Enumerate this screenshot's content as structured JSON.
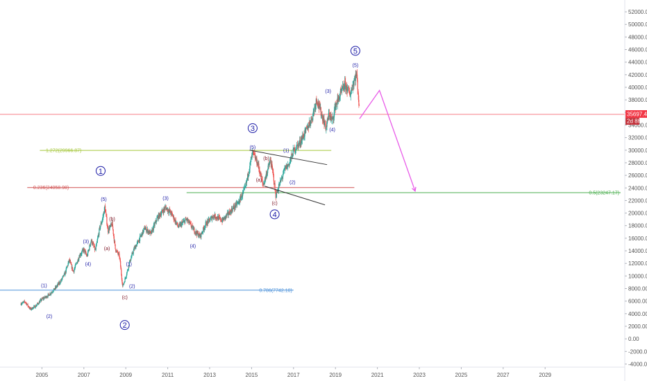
{
  "chart_data": {
    "type": "candlestick",
    "y_ticks": [
      -4000,
      -2000,
      0,
      2000,
      4000,
      6000,
      8000,
      10000,
      12000,
      14000,
      16000,
      18000,
      20000,
      22000,
      24000,
      26000,
      28000,
      30000,
      32000,
      34000,
      36000,
      38000,
      40000,
      42000,
      44000,
      46000,
      48000,
      50000,
      52000
    ],
    "x_ticks": [
      2005,
      2007,
      2009,
      2011,
      2013,
      2015,
      2017,
      2019,
      2021,
      2023,
      2025,
      2027,
      2029
    ],
    "y_tick_decimals": 2,
    "ylim": [
      -4500,
      53000
    ],
    "xlim": [
      2003.0,
      2032.8
    ],
    "last_price": {
      "label": "35697.40",
      "value": 35697.4,
      "countdown": "2d 8h",
      "color": "#f23645"
    },
    "price_series": [
      [
        2004.0,
        5600
      ],
      [
        2004.2,
        5900
      ],
      [
        2004.45,
        4700
      ],
      [
        2004.7,
        5200
      ],
      [
        2005.0,
        6300
      ],
      [
        2005.3,
        6900
      ],
      [
        2005.6,
        7900
      ],
      [
        2005.9,
        9200
      ],
      [
        2006.1,
        10400
      ],
      [
        2006.3,
        12500
      ],
      [
        2006.5,
        10700
      ],
      [
        2006.8,
        13300
      ],
      [
        2007.0,
        14200
      ],
      [
        2007.15,
        13100
      ],
      [
        2007.35,
        15700
      ],
      [
        2007.55,
        14000
      ],
      [
        2007.75,
        17500
      ],
      [
        2007.9,
        19200
      ],
      [
        2008.0,
        21000
      ],
      [
        2008.15,
        17200
      ],
      [
        2008.35,
        18300
      ],
      [
        2008.5,
        14300
      ],
      [
        2008.7,
        13100
      ],
      [
        2008.85,
        8300
      ],
      [
        2009.0,
        9900
      ],
      [
        2009.2,
        12400
      ],
      [
        2009.4,
        14300
      ],
      [
        2009.6,
        15500
      ],
      [
        2009.9,
        17600
      ],
      [
        2010.2,
        16700
      ],
      [
        2010.5,
        19200
      ],
      [
        2010.9,
        20900
      ],
      [
        2011.2,
        19800
      ],
      [
        2011.5,
        17800
      ],
      [
        2011.9,
        19000
      ],
      [
        2012.3,
        17100
      ],
      [
        2012.55,
        16300
      ],
      [
        2012.8,
        18200
      ],
      [
        2013.2,
        19600
      ],
      [
        2013.6,
        18800
      ],
      [
        2014.0,
        20300
      ],
      [
        2014.4,
        21800
      ],
      [
        2014.7,
        24000
      ],
      [
        2014.9,
        27300
      ],
      [
        2015.05,
        29600
      ],
      [
        2015.3,
        27800
      ],
      [
        2015.55,
        24400
      ],
      [
        2015.75,
        26700
      ],
      [
        2015.9,
        28400
      ],
      [
        2016.05,
        25700
      ],
      [
        2016.15,
        22700
      ],
      [
        2016.4,
        25200
      ],
      [
        2016.6,
        27100
      ],
      [
        2016.8,
        27900
      ],
      [
        2017.0,
        29900
      ],
      [
        2017.3,
        31200
      ],
      [
        2017.6,
        33100
      ],
      [
        2017.9,
        35300
      ],
      [
        2018.1,
        38200
      ],
      [
        2018.3,
        36100
      ],
      [
        2018.55,
        33600
      ],
      [
        2018.7,
        35800
      ],
      [
        2018.85,
        34600
      ],
      [
        2019.0,
        37100
      ],
      [
        2019.2,
        38600
      ],
      [
        2019.45,
        40400
      ],
      [
        2019.7,
        38900
      ],
      [
        2019.9,
        41300
      ],
      [
        2020.0,
        42100
      ],
      [
        2020.05,
        40600
      ],
      [
        2020.15,
        35700
      ]
    ],
    "projection": [
      [
        2020.15,
        35000
      ],
      [
        2021.1,
        39500
      ],
      [
        2022.8,
        23500
      ]
    ],
    "fib_levels": [
      {
        "label": "1.272(29966.87)",
        "value": 29966.87,
        "x0": 2004.9,
        "x1": 2018.8,
        "color": "#a4c639",
        "label_side": "left"
      },
      {
        "label": "0.236(24058.98)",
        "value": 24058.98,
        "x0": 2004.3,
        "x1": 2019.9,
        "color": "#d05050",
        "label_side": "left"
      },
      {
        "label": "0.5(23247.17)",
        "value": 23247.17,
        "x0": 2011.9,
        "x1": 2032.6,
        "color": "#4caf50",
        "label_side": "right"
      },
      {
        "label": "0.786(7742.10)",
        "value": 7742.1,
        "x0": 2002.4,
        "x1": 2017.0,
        "color": "#4a90d9",
        "label_side": "right"
      }
    ],
    "channel_lines": [
      {
        "x0": 2014.9,
        "y0": 30000,
        "x1": 2018.6,
        "y1": 27700
      },
      {
        "x0": 2015.6,
        "y0": 24300,
        "x1": 2018.5,
        "y1": 21300
      }
    ],
    "wave_labels": [
      {
        "t": "(1)",
        "x": 2005.1,
        "y": 8500,
        "c": "#1a1aa6"
      },
      {
        "t": "(2)",
        "x": 2005.35,
        "y": 3600,
        "c": "#1a1aa6"
      },
      {
        "t": "(3)",
        "x": 2007.1,
        "y": 15500,
        "c": "#1a1aa6"
      },
      {
        "t": "(4)",
        "x": 2007.2,
        "y": 11900,
        "c": "#1a1aa6"
      },
      {
        "t": "(5)",
        "x": 2007.95,
        "y": 22200,
        "c": "#1a1aa6"
      },
      {
        "t": "(b)",
        "x": 2008.35,
        "y": 19100,
        "c": "#7a1020"
      },
      {
        "t": "(a)",
        "x": 2008.1,
        "y": 14400,
        "c": "#7a1020"
      },
      {
        "t": "(1)",
        "x": 2009.15,
        "y": 11900,
        "c": "#1a1aa6"
      },
      {
        "t": "(2)",
        "x": 2009.3,
        "y": 8400,
        "c": "#1a1aa6"
      },
      {
        "t": "(c)",
        "x": 2008.95,
        "y": 6600,
        "c": "#7a1020"
      },
      {
        "t": "(3)",
        "x": 2010.9,
        "y": 22400,
        "c": "#1a1aa6"
      },
      {
        "t": "(4)",
        "x": 2012.2,
        "y": 14800,
        "c": "#1a1aa6"
      },
      {
        "t": "(5)",
        "x": 2015.05,
        "y": 30500,
        "c": "#1a1aa6"
      },
      {
        "t": "(b)",
        "x": 2015.7,
        "y": 28700,
        "c": "#7a1020"
      },
      {
        "t": "(a)",
        "x": 2015.35,
        "y": 25300,
        "c": "#7a1020"
      },
      {
        "t": "(1)",
        "x": 2016.65,
        "y": 30000,
        "c": "#1a1aa6"
      },
      {
        "t": "(2)",
        "x": 2016.95,
        "y": 24900,
        "c": "#1a1aa6"
      },
      {
        "t": "(c)",
        "x": 2016.1,
        "y": 21600,
        "c": "#7a1020"
      },
      {
        "t": "(3)",
        "x": 2018.65,
        "y": 39400,
        "c": "#1a1aa6"
      },
      {
        "t": "(4)",
        "x": 2018.85,
        "y": 33300,
        "c": "#1a1aa6"
      },
      {
        "t": "(5)",
        "x": 2019.95,
        "y": 43500,
        "c": "#1a1aa6"
      }
    ],
    "circle_labels": [
      {
        "t": "1",
        "x": 2007.8,
        "y": 26700
      },
      {
        "t": "2",
        "x": 2008.95,
        "y": 2200
      },
      {
        "t": "3",
        "x": 2015.05,
        "y": 33500
      },
      {
        "t": "4",
        "x": 2016.1,
        "y": 19800
      },
      {
        "t": "5",
        "x": 2019.95,
        "y": 45800
      }
    ],
    "colors": {
      "up": "#26a69a",
      "down": "#ef5350",
      "projection": "#e85be8",
      "channel": "#333333"
    }
  }
}
